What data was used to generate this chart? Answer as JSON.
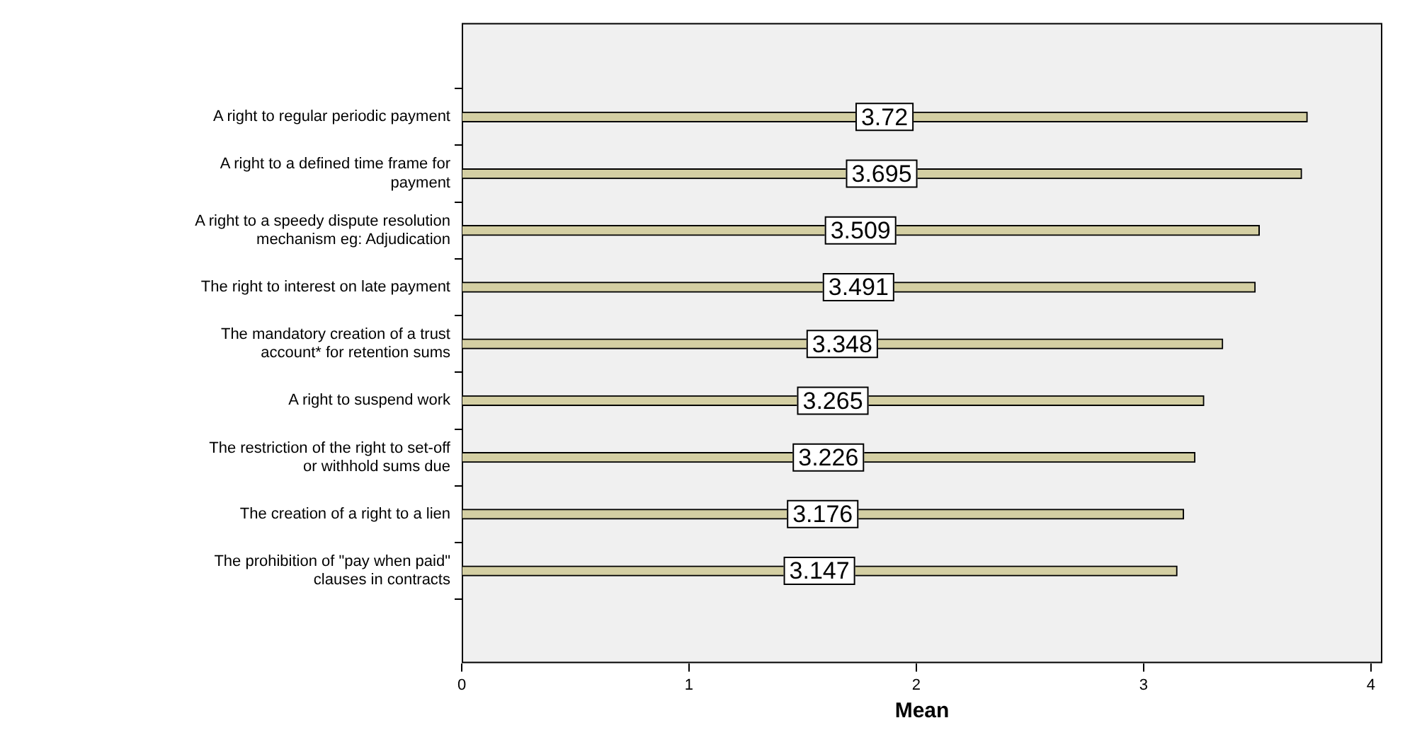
{
  "chart_data": {
    "type": "bar",
    "orientation": "horizontal",
    "xlabel": "Mean",
    "categories": [
      "A right to regular periodic payment",
      "A right to a defined time frame for payment",
      "A right to a speedy dispute resolution mechanism eg: Adjudication",
      "The right to interest on late payment",
      "The mandatory creation of a trust account* for retention sums",
      "A right to suspend work",
      "The restriction of the right to set-off or withhold sums due",
      "The creation of a right to a lien",
      "The prohibition of \"pay when paid\" clauses in contracts"
    ],
    "values": [
      3.72,
      3.695,
      3.509,
      3.491,
      3.348,
      3.265,
      3.226,
      3.176,
      3.147
    ],
    "color": "#d4cfa3",
    "xlim": [
      0,
      4.05
    ],
    "xticks": [
      0,
      1,
      2,
      3,
      4
    ],
    "data_labels": true,
    "grid": false,
    "legend": false
  }
}
